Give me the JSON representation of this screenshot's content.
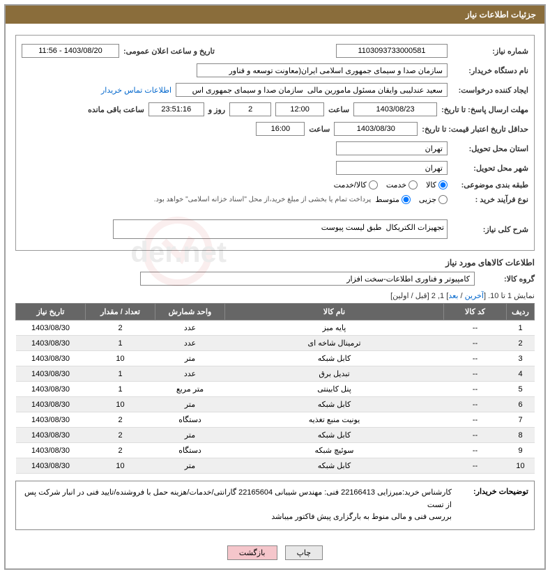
{
  "header": {
    "title": "جزئیات اطلاعات نیاز"
  },
  "form": {
    "need_number_label": "شماره نیاز:",
    "need_number": "1103093733000581",
    "announce_datetime_label": "تاریخ و ساعت اعلان عمومی:",
    "announce_datetime": "1403/08/20 - 11:56",
    "buyer_org_label": "نام دستگاه خریدار:",
    "buyer_org": "سازمان صدا و سیمای جمهوری اسلامی ایران(معاونت توسعه و فناور",
    "requester_label": "ایجاد کننده درخواست:",
    "requester": "سعید عندلیبی وایقان مسئول مامورین مالی  سازمان صدا و سیمای جمهوری اس",
    "contact_link": "اطلاعات تماس خریدار",
    "response_deadline_label": "مهلت ارسال پاسخ:",
    "until_label": "تا تاریخ:",
    "response_date": "1403/08/23",
    "time_label": "ساعت",
    "response_time": "12:00",
    "days_remaining": "2",
    "days_text": "روز و",
    "time_remaining": "23:51:16",
    "remaining_text": "ساعت باقی مانده",
    "validity_label": "حداقل تاریخ اعتبار قیمت:",
    "validity_date": "1403/08/30",
    "validity_time": "16:00",
    "province_label": "استان محل تحویل:",
    "province": "تهران",
    "city_label": "شهر محل تحویل:",
    "city": "تهران",
    "category_label": "طبقه بندی موضوعی:",
    "cat_goods": "کالا",
    "cat_service": "خدمت",
    "cat_goods_service": "کالا/خدمت",
    "process_type_label": "نوع فرآیند خرید :",
    "proc_partial": "جزیی",
    "proc_medium": "متوسط",
    "process_note": "پرداخت تمام یا بخشی از مبلغ خرید،از محل \"اسناد خزانه اسلامی\" خواهد بود.",
    "general_desc_label": "شرح کلی نیاز:",
    "general_desc": "تجهیزات الکتریکال  طبق لیست پیوست"
  },
  "goods_section_title": "اطلاعات كالاهای مورد نیاز",
  "goods_group_label": "گروه کالا:",
  "goods_group": "کامپیوتر و فناوری اطلاعات-سخت افزار",
  "pager": {
    "text_prefix": "نمایش 1 تا 10. [",
    "last": "آخرین",
    "next": "بعد",
    "sep": " / ",
    "pages": "] 1, 2 [قبل / اولین]"
  },
  "table": {
    "headers": {
      "row": "ردیف",
      "code": "کد کالا",
      "name": "نام کالا",
      "unit": "واحد شمارش",
      "qty": "تعداد / مقدار",
      "date": "تاریخ نیاز"
    },
    "rows": [
      {
        "n": "1",
        "code": "--",
        "name": "پایه میز",
        "unit": "عدد",
        "qty": "2",
        "date": "1403/08/30"
      },
      {
        "n": "2",
        "code": "--",
        "name": "ترمینال شاخه ای",
        "unit": "عدد",
        "qty": "1",
        "date": "1403/08/30"
      },
      {
        "n": "3",
        "code": "--",
        "name": "کابل شبکه",
        "unit": "متر",
        "qty": "10",
        "date": "1403/08/30"
      },
      {
        "n": "4",
        "code": "--",
        "name": "تبدیل برق",
        "unit": "عدد",
        "qty": "1",
        "date": "1403/08/30"
      },
      {
        "n": "5",
        "code": "--",
        "name": "پنل کابینتی",
        "unit": "متر مربع",
        "qty": "1",
        "date": "1403/08/30"
      },
      {
        "n": "6",
        "code": "--",
        "name": "کابل شبکه",
        "unit": "متر",
        "qty": "10",
        "date": "1403/08/30"
      },
      {
        "n": "7",
        "code": "--",
        "name": "یونیت منبع تغذیه",
        "unit": "دستگاه",
        "qty": "2",
        "date": "1403/08/30"
      },
      {
        "n": "8",
        "code": "--",
        "name": "کابل شبکه",
        "unit": "متر",
        "qty": "2",
        "date": "1403/08/30"
      },
      {
        "n": "9",
        "code": "--",
        "name": "سوئیچ شبکه",
        "unit": "دستگاه",
        "qty": "2",
        "date": "1403/08/30"
      },
      {
        "n": "10",
        "code": "--",
        "name": "کابل شبکه",
        "unit": "متر",
        "qty": "10",
        "date": "1403/08/30"
      }
    ]
  },
  "buyer_notes_label": "توضیحات خریدار:",
  "buyer_notes": "کارشناس خرید:میرزایی 22166413  فنی: مهندس شیبانی 22165604 گارانتی/خدمات/هزینه حمل با فروشنده/تایید فنی در انبار شرکت پس از تست\nبررسی فنی و مالی منوط به بارگزاری پیش فاکتور میباشد",
  "buttons": {
    "print": "چاپ",
    "back": "بازگشت"
  },
  "colors": {
    "header_bg": "#8a6d3b",
    "table_header_bg": "#666666",
    "link": "#0066cc",
    "btn_back_bg": "#f5c6cb"
  }
}
